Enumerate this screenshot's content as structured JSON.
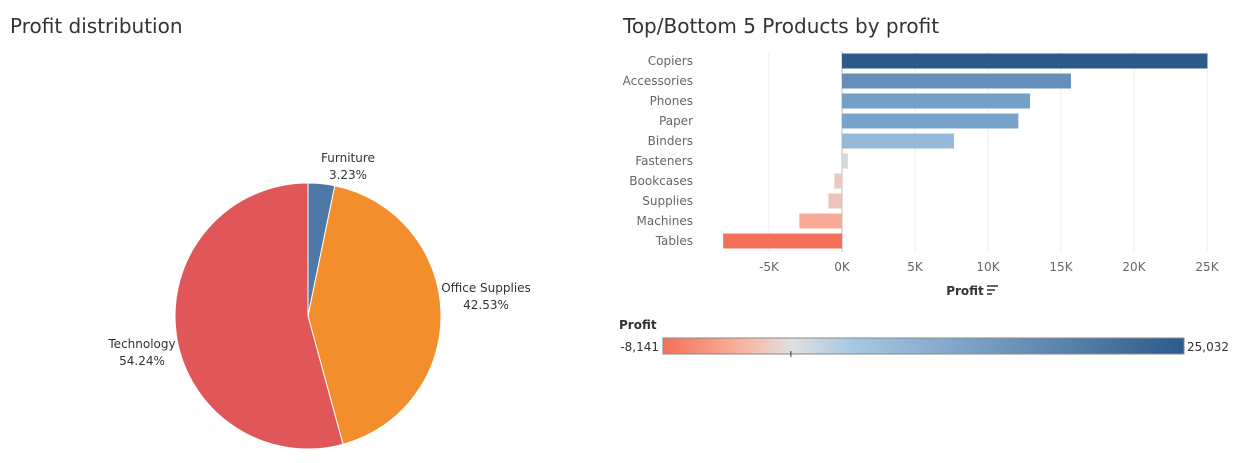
{
  "colors": {
    "furniture": "#4e79a7",
    "office_supplies": "#f28e2b",
    "technology": "#e15759",
    "positive_max": "#2d5a8b",
    "neutral": "#e8e8e8",
    "negative_min": "#f4705a",
    "axis_text": "#666666",
    "gridline": "#eeeeee"
  },
  "chart_data": [
    {
      "type": "pie",
      "title": "Profit distribution",
      "slices": [
        {
          "name": "Furniture",
          "percent": 3.23,
          "label": "3.23%",
          "color": "#4e79a7"
        },
        {
          "name": "Office Supplies",
          "percent": 42.53,
          "label": "42.53%",
          "color": "#f28e2b"
        },
        {
          "name": "Technology",
          "percent": 54.24,
          "label": "54.24%",
          "color": "#e15759"
        }
      ],
      "start": "top",
      "direction": "clockwise"
    },
    {
      "type": "bar",
      "orientation": "horizontal",
      "title": "Top/Bottom 5 Products by profit",
      "xlabel": "Profit",
      "categories": [
        "Copiers",
        "Accessories",
        "Phones",
        "Paper",
        "Binders",
        "Fasteners",
        "Bookcases",
        "Supplies",
        "Machines",
        "Tables"
      ],
      "values": [
        25032,
        15680,
        12880,
        12080,
        7669,
        400,
        -520,
        -930,
        -2920,
        -8141
      ],
      "xlim": [
        -9000,
        26000
      ],
      "xticks": [
        -5000,
        0,
        5000,
        10000,
        15000,
        20000,
        25000
      ],
      "xtick_labels": [
        "-5K",
        "0K",
        "5K",
        "10K",
        "15K",
        "20K",
        "25K"
      ],
      "grid": true,
      "color_legend": {
        "title": "Profit",
        "min": -8141,
        "max": 25032,
        "min_label": "-8,141",
        "max_label": "25,032"
      }
    }
  ]
}
